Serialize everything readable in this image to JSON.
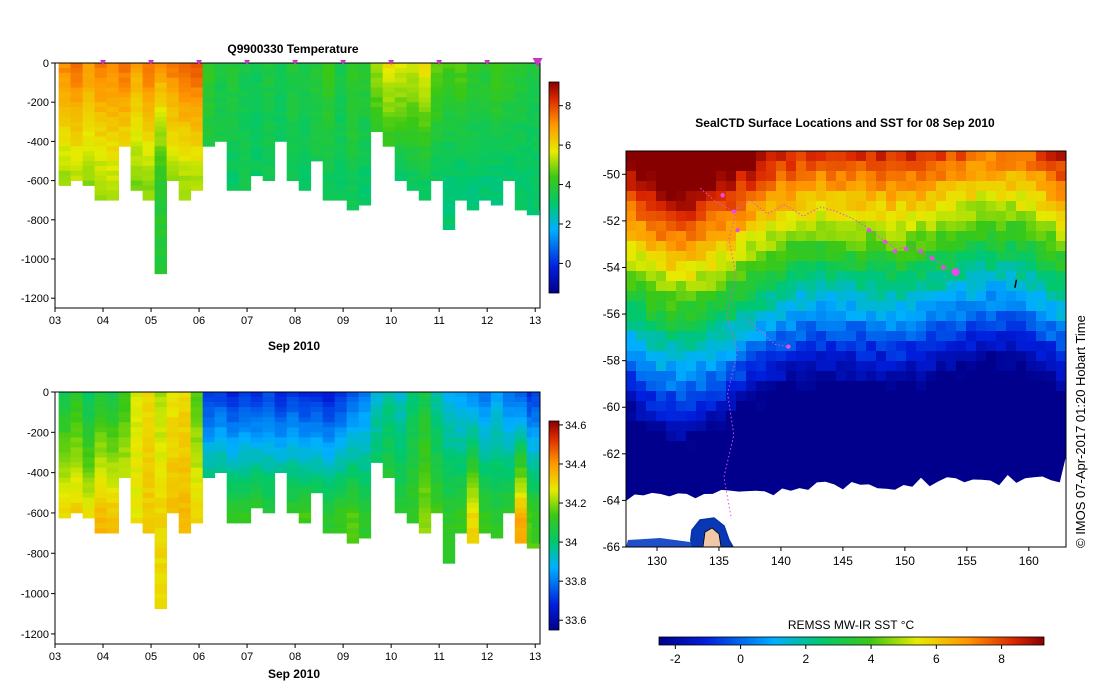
{
  "chart_data": [
    {
      "type": "heatmap",
      "title": "Q9900330  Temperature",
      "xlabel": "Sep 2010",
      "ylabel": "",
      "x_ticks": [
        "03",
        "04",
        "05",
        "06",
        "07",
        "08",
        "09",
        "10",
        "11",
        "12",
        "13"
      ],
      "xlim": [
        3,
        13.1
      ],
      "y_ticks": [
        0,
        -200,
        -400,
        -600,
        -800,
        -1000,
        -1200
      ],
      "ylim": [
        -1250,
        0
      ],
      "colorbar": {
        "ticks": [
          0,
          2,
          4,
          6,
          8
        ],
        "range": [
          -1.5,
          9.2
        ]
      },
      "profile_days": [
        3.2,
        3.45,
        3.7,
        3.95,
        4.2,
        4.45,
        4.7,
        4.95,
        5.2,
        5.45,
        5.7,
        5.95,
        6.2,
        6.45,
        6.7,
        6.95,
        7.2,
        7.45,
        7.7,
        7.95,
        8.2,
        8.45,
        8.7,
        8.95,
        9.2,
        9.45,
        9.7,
        9.95,
        10.2,
        10.45,
        10.7,
        10.95,
        11.2,
        11.45,
        11.7,
        11.95,
        12.2,
        12.45,
        12.7,
        12.95,
        13.05
      ],
      "profile_depths": [
        625,
        600,
        610,
        680,
        700,
        420,
        650,
        700,
        1070,
        600,
        700,
        650,
        420,
        400,
        650,
        640,
        560,
        590,
        400,
        600,
        650,
        500,
        700,
        700,
        730,
        710,
        330,
        420,
        600,
        650,
        680,
        600,
        850,
        700,
        740,
        700,
        720,
        600,
        740,
        760,
        740
      ],
      "surface_temp": [
        7.2,
        7.5,
        7.0,
        7.4,
        7.3,
        7.6,
        6.8,
        7.5,
        7.0,
        7.4,
        7.6,
        7.8,
        4.2,
        3.6,
        3.9,
        3.5,
        3.4,
        3.7,
        3.3,
        3.8,
        3.6,
        3.9,
        4.3,
        3.5,
        4.2,
        4.0,
        5.1,
        5.8,
        5.7,
        5.5,
        5.9,
        4.8,
        4.4,
        4.6,
        4.2,
        4.0,
        4.5,
        4.1,
        3.9,
        3.6,
        3.7
      ],
      "deep_temp": [
        5.0,
        5.2,
        4.9,
        5.1,
        5.3,
        5.0,
        4.8,
        5.0,
        3.9,
        4.9,
        5.1,
        5.2,
        3.3,
        3.5,
        3.1,
        3.4,
        3.2,
        3.3,
        3.1,
        3.3,
        3.2,
        3.4,
        3.3,
        3.2,
        3.4,
        3.1,
        3.2,
        3.3,
        3.0,
        3.1,
        3.2,
        3.1,
        3.0,
        2.9,
        3.0,
        3.0,
        2.9,
        3.0,
        3.1,
        3.0,
        3.1
      ]
    },
    {
      "type": "heatmap",
      "title": "",
      "xlabel": "Sep 2010",
      "ylabel": "",
      "x_ticks": [
        "03",
        "04",
        "05",
        "06",
        "07",
        "08",
        "09",
        "10",
        "11",
        "12",
        "13"
      ],
      "xlim": [
        3,
        13.1
      ],
      "y_ticks": [
        0,
        -200,
        -400,
        -600,
        -800,
        -1000,
        -1200
      ],
      "ylim": [
        -1250,
        0
      ],
      "colorbar": {
        "ticks": [
          "34.6",
          "34.4",
          "34.2",
          "34",
          "33.8",
          "33.6"
        ],
        "range": [
          33.55,
          34.62
        ]
      },
      "surface_sal": [
        34.05,
        34.1,
        34.0,
        34.08,
        34.05,
        34.12,
        34.25,
        34.3,
        34.22,
        34.28,
        34.3,
        34.15,
        33.7,
        33.72,
        33.68,
        33.72,
        33.7,
        33.74,
        33.68,
        33.72,
        33.68,
        33.7,
        33.66,
        33.7,
        33.75,
        33.8,
        33.9,
        33.95,
        33.92,
        34.0,
        34.05,
        33.95,
        33.88,
        33.85,
        33.82,
        33.8,
        33.86,
        33.8,
        33.75,
        33.7,
        33.72
      ],
      "deep_sal": [
        34.3,
        34.32,
        34.28,
        34.35,
        34.33,
        34.3,
        34.28,
        34.32,
        34.3,
        34.34,
        34.35,
        34.3,
        34.12,
        34.15,
        34.13,
        34.12,
        34.14,
        34.1,
        34.13,
        34.12,
        34.14,
        34.12,
        34.1,
        34.13,
        34.15,
        34.1,
        34.12,
        34.14,
        34.1,
        34.12,
        34.2,
        34.14,
        34.1,
        34.12,
        34.3,
        34.12,
        34.1,
        34.12,
        34.38,
        34.15,
        34.12
      ]
    },
    {
      "type": "heatmap",
      "title": "SealCTD Surface Locations and SST for 08 Sep 2010",
      "xlabel": "",
      "ylabel": "",
      "x_ticks": [
        130,
        135,
        140,
        145,
        150,
        155,
        160
      ],
      "xlim": [
        127.5,
        163
      ],
      "y_ticks": [
        -50,
        -52,
        -54,
        -56,
        -58,
        -60,
        -62,
        -64,
        -66
      ],
      "ylim": [
        -66,
        -49
      ],
      "colorbar_label": "REMSS MW-IR SST °C",
      "colorbar": {
        "ticks": [
          -2,
          0,
          2,
          4,
          6,
          8
        ],
        "range": [
          -2.5,
          9.3
        ]
      },
      "track": [
        [
          133.5,
          -50.6
        ],
        [
          134.8,
          -51.2
        ],
        [
          136.2,
          -51.6
        ],
        [
          137.5,
          -51.1
        ],
        [
          138.9,
          -51.7
        ],
        [
          140.3,
          -51.3
        ],
        [
          141.8,
          -51.8
        ],
        [
          143.2,
          -51.4
        ],
        [
          144.5,
          -51.6
        ],
        [
          145.8,
          -51.9
        ],
        [
          147,
          -52.3
        ],
        [
          148.2,
          -52.8
        ],
        [
          149.3,
          -53.2
        ],
        [
          150.5,
          -53.1
        ],
        [
          151.5,
          -53.4
        ],
        [
          152.5,
          -53.7
        ],
        [
          153.3,
          -54.0
        ],
        [
          154.1,
          -54.2
        ]
      ],
      "track2": [
        [
          136.5,
          -51.4
        ],
        [
          135.8,
          -52.8
        ],
        [
          136.4,
          -54.4
        ],
        [
          135.6,
          -56
        ],
        [
          136.5,
          -57.6
        ],
        [
          135.7,
          -59.4
        ],
        [
          136.2,
          -61.2
        ],
        [
          135.4,
          -63
        ],
        [
          136,
          -64.8
        ]
      ],
      "track3": [
        [
          137.2,
          -56.2
        ],
        [
          138.5,
          -56.8
        ],
        [
          139.5,
          -57.3
        ],
        [
          140.6,
          -57.4
        ]
      ],
      "positions": [
        [
          135.3,
          -50.9
        ],
        [
          136.2,
          -51.6
        ],
        [
          136.5,
          -52.4
        ],
        [
          147.1,
          -52.4
        ],
        [
          148.4,
          -52.9
        ],
        [
          149.2,
          -53.3
        ],
        [
          150.1,
          -53.2
        ],
        [
          151.3,
          -53.3
        ],
        [
          152.2,
          -53.6
        ],
        [
          153.1,
          -54.0
        ],
        [
          140.6,
          -57.4
        ]
      ],
      "latest_position": [
        154.1,
        -54.2
      ],
      "small_marker": [
        159,
        -54.7
      ]
    }
  ],
  "map_credit": "© IMOS 07-Apr-2017 01:20 Hobart Time",
  "colors": {
    "profile_marker": "#cc33cc",
    "track": "#e64ce6",
    "ice_outline": "#0033aa",
    "land": "#f0c8a8"
  }
}
